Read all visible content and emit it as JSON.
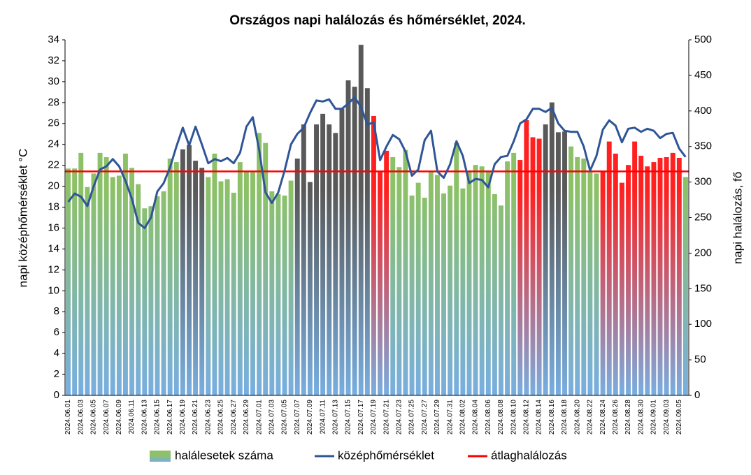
{
  "chart_data": {
    "type": "bar-line",
    "title": "Országos napi halálozás és hőmérséklet, 2024.",
    "y_label": "napi középhőmérséklet  °C",
    "y2_label": "napi halálozás, fő",
    "categories": [
      "2024.06.01",
      null,
      "2024.06.03",
      null,
      "2024.06.05",
      null,
      "2024.06.07",
      null,
      "2024.06.09",
      null,
      "2024.06.11",
      null,
      "2024.06.13",
      null,
      "2024.06.15",
      null,
      "2024.06.17",
      null,
      "2024.06.19",
      null,
      "2024.06.21",
      null,
      "2024.06.23",
      null,
      "2024.06.25",
      null,
      "2024.06.27",
      null,
      "2024.06.29",
      null,
      "2024.07.01",
      null,
      "2024.07.03",
      null,
      "2024.07.05",
      null,
      "2024.07.07",
      null,
      "2024.07.09",
      null,
      "2024.07.11",
      null,
      "2024.07.13",
      null,
      "2024.07.15",
      null,
      "2024.07.17",
      null,
      "2024.07.19",
      null,
      "2024.07.21",
      null,
      "2024.07.23",
      null,
      "2024.07.25",
      null,
      "2024.07.27",
      null,
      "2024.07.29",
      null,
      "2024.07.31",
      null,
      "2024.08.02",
      null,
      "2024.08.04",
      null,
      "2024.08.06",
      null,
      "2024.08.08",
      null,
      "2024.08.10",
      null,
      "2024.08.12",
      null,
      "2024.08.14",
      null,
      "2024.08.16",
      null,
      "2024.08.18",
      null,
      "2024.08.20",
      null,
      "2024.08.22",
      null,
      "2024.08.24",
      null,
      "2024.08.26",
      null,
      "2024.08.28",
      null,
      "2024.08.30",
      null,
      "2024.09.01",
      null,
      "2024.09.03",
      null,
      "2024.09.05",
      null
    ],
    "series": [
      {
        "name": "halálesetek száma",
        "axis": "y2",
        "values": [
          319,
          319,
          341,
          293,
          312,
          341,
          335,
          307,
          309,
          340,
          320,
          297,
          263,
          266,
          280,
          287,
          333,
          328,
          346,
          352,
          330,
          320,
          307,
          340,
          301,
          304,
          285,
          328,
          315,
          315,
          369,
          355,
          287,
          283,
          281,
          302,
          333,
          381,
          300,
          381,
          396,
          381,
          369,
          403,
          443,
          434,
          493,
          432,
          393,
          315,
          344,
          335,
          321,
          345,
          281,
          299,
          278,
          315,
          310,
          284,
          295,
          355,
          291,
          316,
          324,
          322,
          316,
          283,
          267,
          329,
          341,
          331,
          387,
          363,
          361,
          381,
          412,
          370,
          371,
          350,
          335,
          333,
          315,
          312,
          316,
          357,
          340,
          299,
          324,
          357,
          337,
          322,
          328,
          334,
          335,
          341,
          334,
          307
        ],
        "colors": [
          "#8cc168",
          "#8cc168",
          "#8cc168",
          "#8cc168",
          "#8cc168",
          "#8cc168",
          "#8cc168",
          "#8cc168",
          "#8cc168",
          "#8cc168",
          "#8cc168",
          "#8cc168",
          "#8cc168",
          "#8cc168",
          "#8cc168",
          "#8cc168",
          "#8cc168",
          "#8cc168",
          "#595959",
          "#595959",
          "#595959",
          "#595959",
          "#8cc168",
          "#8cc168",
          "#8cc168",
          "#8cc168",
          "#8cc168",
          "#8cc168",
          "#8cc168",
          "#8cc168",
          "#8cc168",
          "#8cc168",
          "#8cc168",
          "#8cc168",
          "#8cc168",
          "#8cc168",
          "#595959",
          "#595959",
          "#595959",
          "#595959",
          "#595959",
          "#595959",
          "#595959",
          "#595959",
          "#595959",
          "#595959",
          "#595959",
          "#595959",
          "#ff2020",
          "#ff2020",
          "#ff2020",
          "#8cc168",
          "#8cc168",
          "#8cc168",
          "#8cc168",
          "#8cc168",
          "#8cc168",
          "#8cc168",
          "#8cc168",
          "#8cc168",
          "#8cc168",
          "#8cc168",
          "#8cc168",
          "#8cc168",
          "#8cc168",
          "#8cc168",
          "#8cc168",
          "#8cc168",
          "#8cc168",
          "#8cc168",
          "#8cc168",
          "#ff2020",
          "#ff2020",
          "#ff2020",
          "#ff2020",
          "#595959",
          "#595959",
          "#595959",
          "#595959",
          "#8cc168",
          "#8cc168",
          "#8cc168",
          "#8cc168",
          "#8cc168",
          "#ff2020",
          "#ff2020",
          "#ff2020",
          "#ff2020",
          "#ff2020",
          "#ff2020",
          "#ff2020",
          "#ff2020",
          "#ff2020",
          "#ff2020",
          "#ff2020",
          "#ff2020",
          "#ff2020",
          "#8cc168"
        ]
      },
      {
        "name": "középhőmérséklet",
        "color": "#2f5597",
        "type": "line",
        "values": [
          18.5,
          19.3,
          19.0,
          18.1,
          20.0,
          21.6,
          21.9,
          22.6,
          21.9,
          20.5,
          18.8,
          16.5,
          16.0,
          17.0,
          19.5,
          20.3,
          21.8,
          23.8,
          25.6,
          23.9,
          25.7,
          24.0,
          22.2,
          22.6,
          22.4,
          22.7,
          22.2,
          23.2,
          25.7,
          26.6,
          23.5,
          19.4,
          18.4,
          19.4,
          21.5,
          24.0,
          25.0,
          25.6,
          27.0,
          28.2,
          28.1,
          28.3,
          27.4,
          27.4,
          27.9,
          28.5,
          27.6,
          25.9,
          26.1,
          22.5,
          23.8,
          24.9,
          24.5,
          23.3,
          21.0,
          21.6,
          24.4,
          25.3,
          21.4,
          20.8,
          22.1,
          24.3,
          22.9,
          20.3,
          20.7,
          20.6,
          19.9,
          22.1,
          22.8,
          22.9,
          24.3,
          26.0,
          26.4,
          27.4,
          27.4,
          27.1,
          27.5,
          26.0,
          25.3,
          25.2,
          25.2,
          23.8,
          21.5,
          22.9,
          25.4,
          26.3,
          25.8,
          24.2,
          25.5,
          25.6,
          25.2,
          25.5,
          25.3,
          24.6,
          25.0,
          25.1,
          23.6,
          22.8
        ]
      },
      {
        "name": "átlaghalálozás",
        "color": "#ff0000",
        "axis": "y2",
        "value": 315
      }
    ],
    "ylim": [
      0,
      34
    ],
    "yticks": [
      0,
      2,
      4,
      6,
      8,
      10,
      12,
      14,
      16,
      18,
      20,
      22,
      24,
      26,
      28,
      30,
      32,
      34
    ],
    "y2lim": [
      0,
      500
    ],
    "y2ticks": [
      0,
      50,
      100,
      150,
      200,
      250,
      300,
      350,
      400,
      450,
      500
    ],
    "bar_base_color": "#78aee0",
    "legend": "bottom",
    "grid": false
  }
}
